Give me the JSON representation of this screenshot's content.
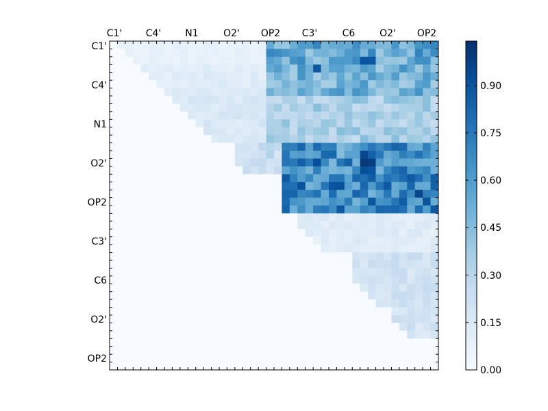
{
  "chart_data": {
    "type": "heatmap",
    "title": "",
    "xlabel": "",
    "ylabel": "",
    "x_tick_labels": [
      "C1'",
      "C4'",
      "N1",
      "O2'",
      "OP2",
      "C3'",
      "C6",
      "O2'",
      "OP2"
    ],
    "y_tick_labels": [
      "C1'",
      "C4'",
      "N1",
      "O2'",
      "OP2",
      "C3'",
      "C6",
      "O2'",
      "OP2"
    ],
    "colorbar": {
      "colormap": "Blues",
      "range": [
        0,
        1.04
      ],
      "tick_values": [
        0.0,
        0.15,
        0.3,
        0.45,
        0.6,
        0.75,
        0.9
      ],
      "tick_labels": [
        "0.00",
        "0.15",
        "0.30",
        "0.45",
        "0.60",
        "0.75",
        "0.90"
      ]
    },
    "grid_size": 42,
    "note_matrix_values": "upper-triangular correlation-like matrix, values 0-1",
    "blocks": [
      {
        "rows": [
          0,
          3
        ],
        "cols": [
          1,
          20
        ],
        "value": 0.08
      },
      {
        "rows": [
          0,
          3
        ],
        "cols": [
          20,
          42
        ],
        "value": 0.55
      },
      {
        "rows": [
          3,
          7
        ],
        "cols": [
          4,
          20
        ],
        "value": 0.12
      },
      {
        "rows": [
          3,
          7
        ],
        "cols": [
          20,
          42
        ],
        "value": 0.5
      },
      {
        "rows": [
          7,
          13
        ],
        "cols": [
          8,
          20
        ],
        "value": 0.15
      },
      {
        "rows": [
          7,
          13
        ],
        "cols": [
          20,
          42
        ],
        "value": 0.35
      },
      {
        "rows": [
          13,
          17
        ],
        "cols": [
          16,
          22
        ],
        "value": 0.25
      },
      {
        "rows": [
          13,
          17
        ],
        "cols": [
          22,
          42
        ],
        "value": 0.65
      },
      {
        "rows": [
          17,
          22
        ],
        "cols": [
          22,
          42
        ],
        "value": 0.7
      },
      {
        "rows": [
          22,
          27
        ],
        "cols": [
          24,
          42
        ],
        "value": 0.12
      },
      {
        "rows": [
          27,
          34
        ],
        "cols": [
          31,
          42
        ],
        "value": 0.2
      },
      {
        "rows": [
          34,
          38
        ],
        "cols": [
          36,
          42
        ],
        "value": 0.18
      }
    ],
    "hotspots": [
      {
        "row": 15,
        "col": 32,
        "value": 1.0
      },
      {
        "row": 15,
        "col": 33,
        "value": 0.98
      },
      {
        "row": 14,
        "col": 32,
        "value": 0.95
      },
      {
        "row": 16,
        "col": 32,
        "value": 0.92
      },
      {
        "row": 16,
        "col": 33,
        "value": 0.9
      },
      {
        "row": 2,
        "col": 32,
        "value": 0.9
      },
      {
        "row": 2,
        "col": 33,
        "value": 0.88
      },
      {
        "row": 3,
        "col": 26,
        "value": 0.88
      },
      {
        "row": 15,
        "col": 26,
        "value": 0.92
      },
      {
        "row": 15,
        "col": 24,
        "value": 0.85
      },
      {
        "row": 19,
        "col": 39,
        "value": 0.95
      },
      {
        "row": 19,
        "col": 37,
        "value": 0.8
      }
    ]
  }
}
